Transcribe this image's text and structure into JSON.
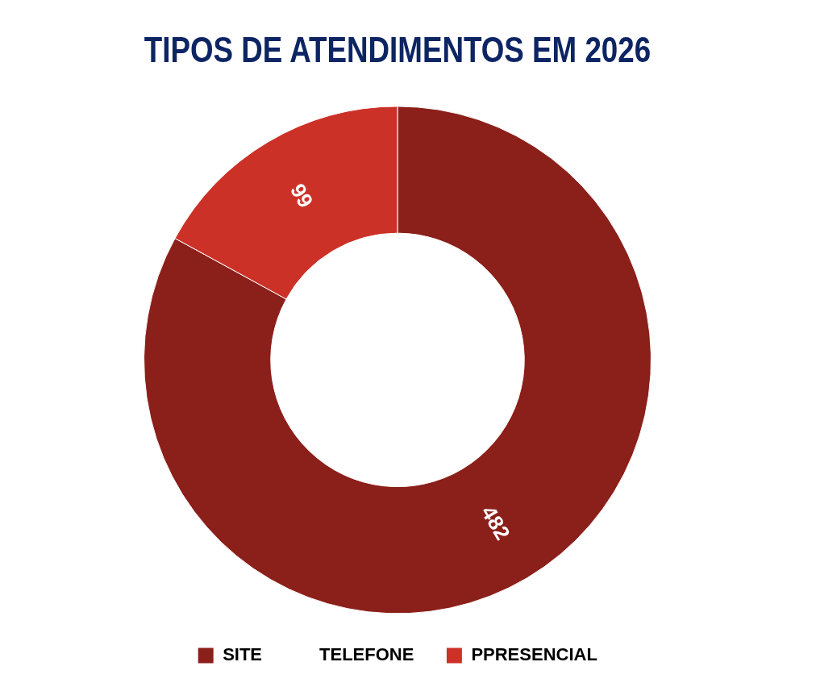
{
  "chart_data": {
    "type": "donut",
    "title": "TIPOS DE ATENDIMENTOS EM 2026",
    "categories": [
      "SITE",
      "TELEFONE",
      "PPRESENCIAL"
    ],
    "values": [
      482,
      0,
      99
    ],
    "colors": [
      "#8b1f1a",
      "#ffffff",
      "#cc3128"
    ],
    "value_labels": [
      "482",
      null,
      "99"
    ],
    "legend": "bottom"
  }
}
